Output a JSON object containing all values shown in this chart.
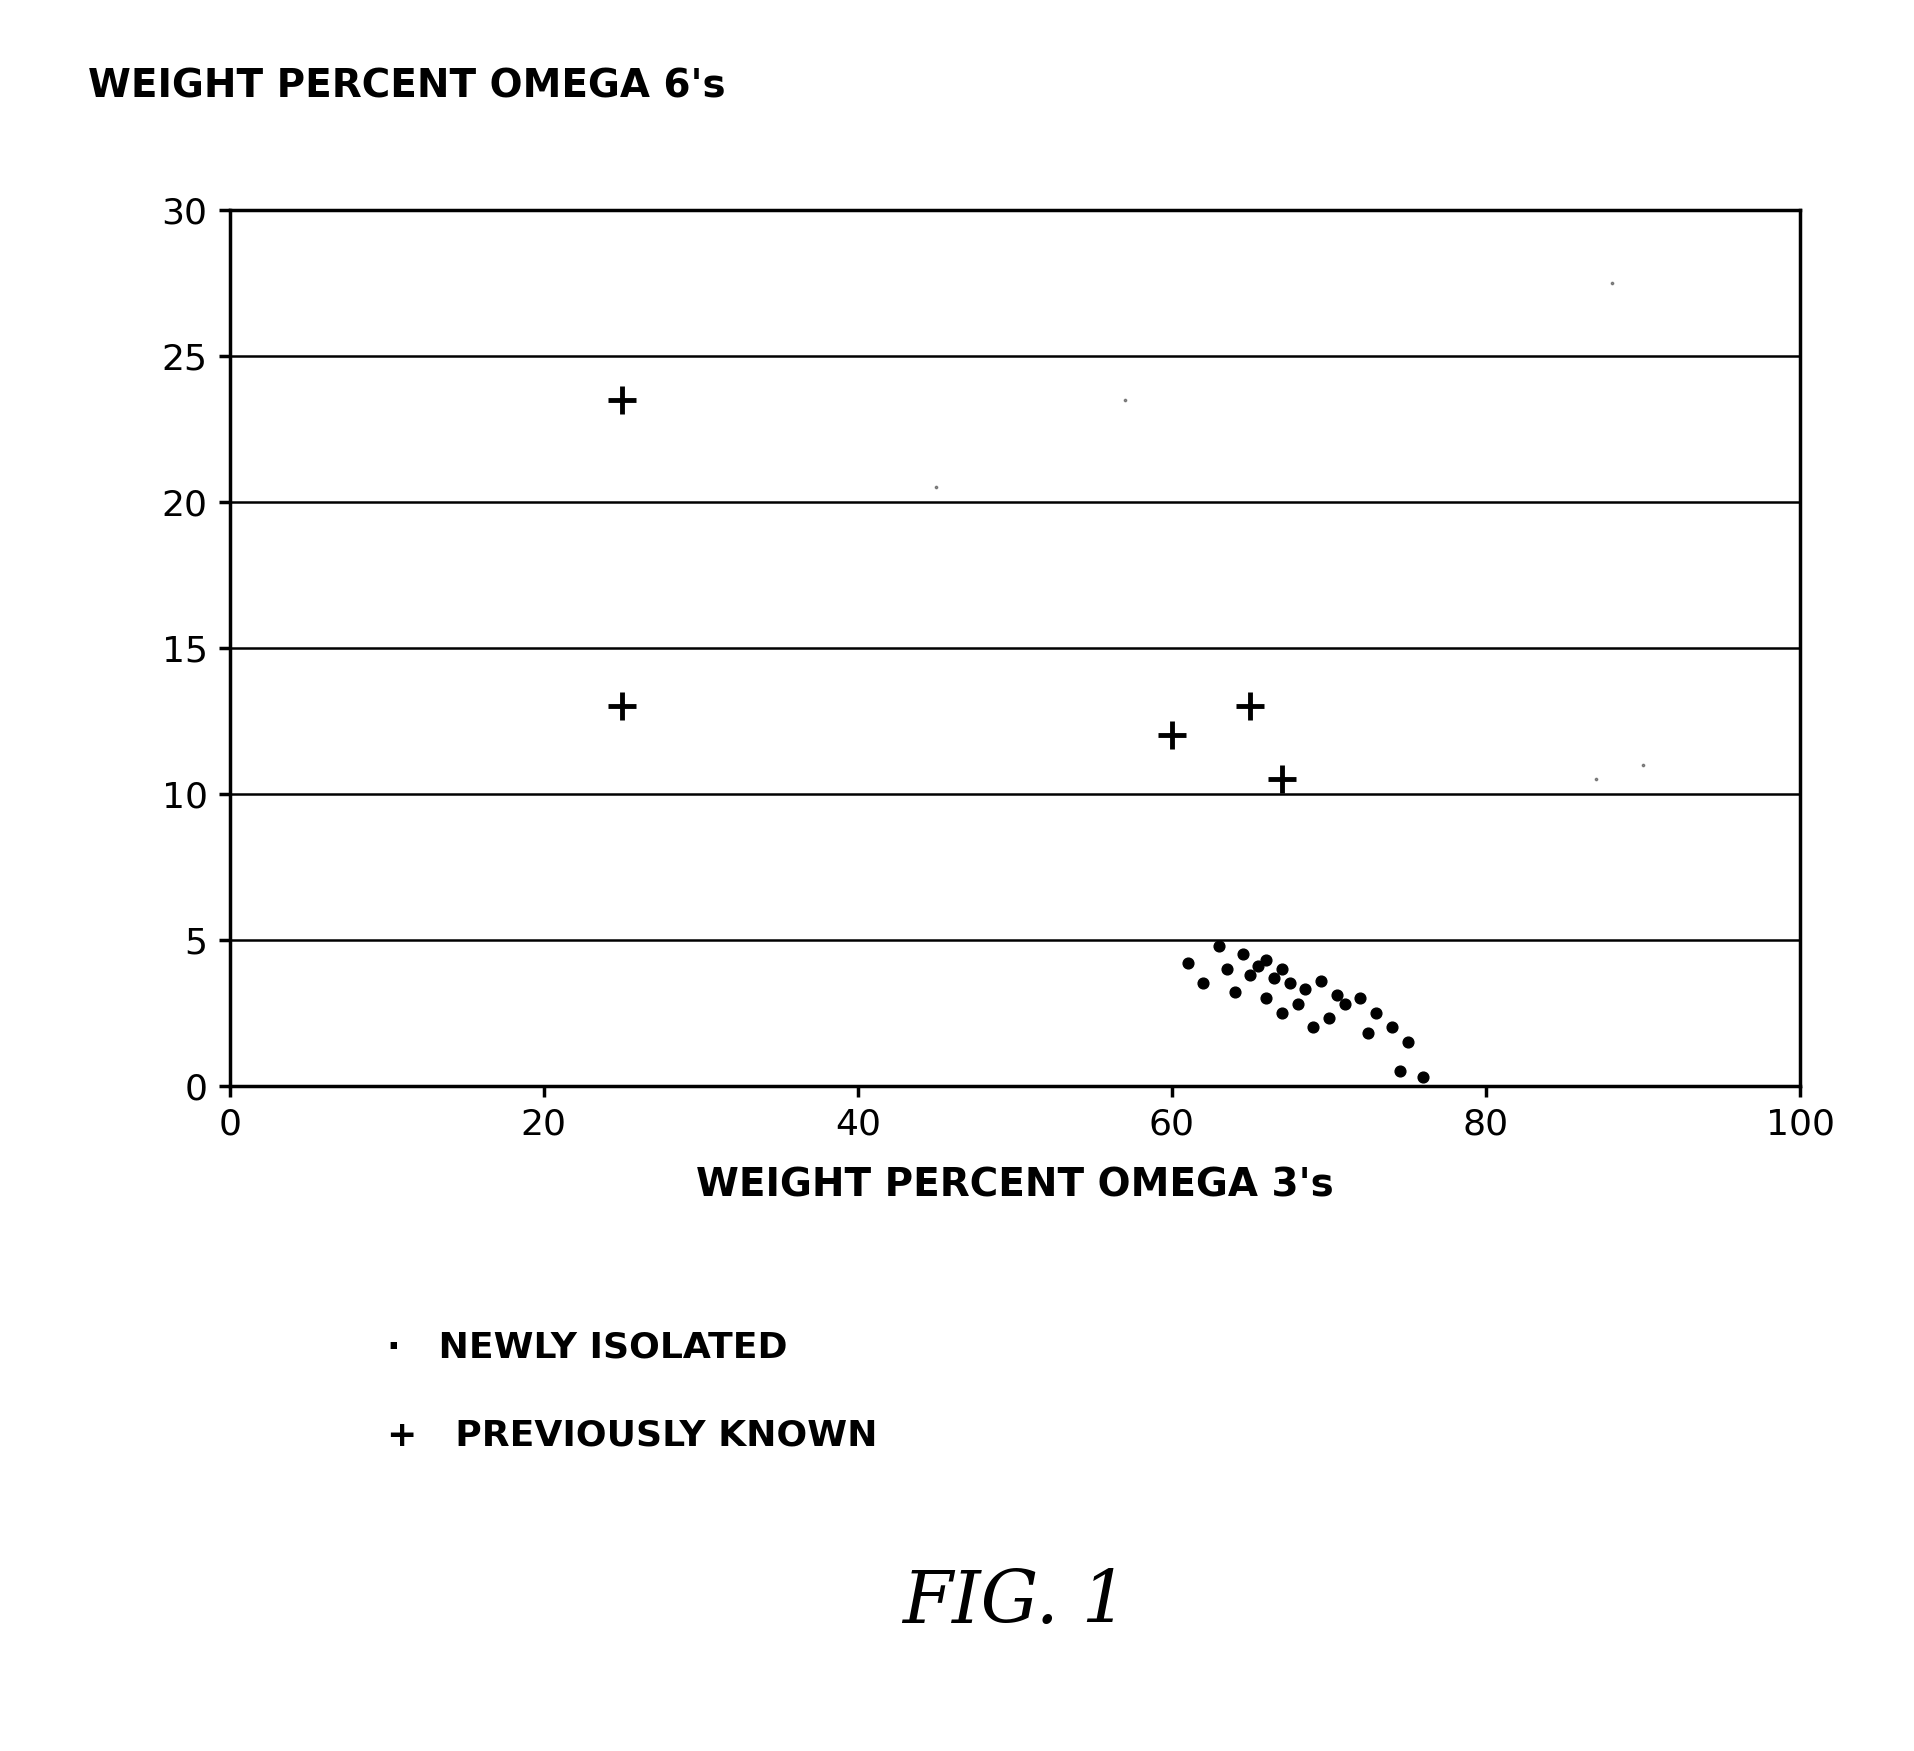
{
  "title": "WEIGHT PERCENT OMEGA 6's",
  "xlabel": "WEIGHT PERCENT OMEGA 3's",
  "xlim": [
    0,
    100
  ],
  "ylim": [
    0,
    30
  ],
  "xticks": [
    0,
    20,
    40,
    60,
    80,
    100
  ],
  "yticks": [
    0,
    5,
    10,
    15,
    20,
    25,
    30
  ],
  "fig_caption": "FIG. 1",
  "plus_points": [
    [
      25,
      23.5
    ],
    [
      25,
      13
    ],
    [
      60,
      12
    ],
    [
      65,
      13
    ],
    [
      67,
      10.5
    ]
  ],
  "dot_points": [
    [
      61,
      4.2
    ],
    [
      62,
      3.5
    ],
    [
      63,
      4.8
    ],
    [
      63.5,
      4.0
    ],
    [
      64,
      3.2
    ],
    [
      64.5,
      4.5
    ],
    [
      65,
      3.8
    ],
    [
      65.5,
      4.1
    ],
    [
      66,
      3.0
    ],
    [
      66,
      4.3
    ],
    [
      66.5,
      3.7
    ],
    [
      67,
      2.5
    ],
    [
      67,
      4.0
    ],
    [
      67.5,
      3.5
    ],
    [
      68,
      2.8
    ],
    [
      68.5,
      3.3
    ],
    [
      69,
      2.0
    ],
    [
      69.5,
      3.6
    ],
    [
      70,
      2.3
    ],
    [
      70.5,
      3.1
    ],
    [
      71,
      2.8
    ],
    [
      72,
      3.0
    ],
    [
      72.5,
      1.8
    ],
    [
      73,
      2.5
    ],
    [
      74,
      2.0
    ],
    [
      74.5,
      0.5
    ],
    [
      75,
      1.5
    ],
    [
      76,
      0.3
    ]
  ],
  "faint_dots": [
    [
      57,
      23.5
    ],
    [
      88,
      27.5
    ],
    [
      45,
      20.5
    ],
    [
      90,
      11.0
    ],
    [
      87,
      10.5
    ]
  ],
  "background_color": "#ffffff",
  "text_color": "#000000",
  "legend_dot_label": "NEWLY ISOLATED",
  "legend_plus_label": "PREVIOUSLY KNOWN"
}
